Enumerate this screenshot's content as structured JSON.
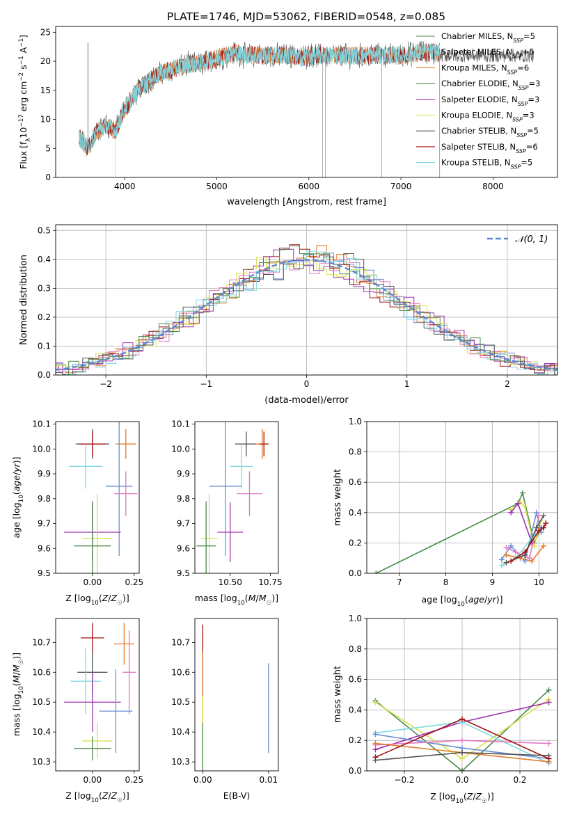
{
  "figure_title": "PLATE=1746, MJD=53062, FIBERID=0548, z=0.085",
  "colors": {
    "c0": "#1f77b4",
    "c1": "#ff7f0e",
    "c2": "#2ca02c",
    "pink": "#e377c2",
    "blue": "#6a8fd6",
    "orange": "#e37b2a",
    "green": "#4a8a4a",
    "purple": "#a030b0",
    "yellow": "#d8e04a",
    "grey": "#555555",
    "red": "#a01010",
    "cyan": "#7fd8e0"
  },
  "chart_data": [
    {
      "id": "spectrum",
      "type": "line",
      "title": "PLATE=1746, MJD=53062, FIBERID=0548, z=0.085",
      "xlabel": "wavelength [Angstrom, rest frame]",
      "ylabel": "Flux [fλ10⁻¹⁷ erg cm⁻² s⁻¹ A⁻¹]",
      "xlim": [
        3250,
        8700
      ],
      "ylim": [
        0,
        26
      ],
      "xticks": [
        4000,
        5000,
        6000,
        7000,
        8000
      ],
      "yticks": [
        0,
        5,
        10,
        15,
        20,
        25
      ],
      "legend": "top-right",
      "envelope": {
        "x": [
          3500,
          3600,
          3700,
          3800,
          3900,
          3950,
          4000,
          4100,
          4200,
          4300,
          4400,
          4500,
          4600,
          4700,
          4800,
          4900,
          5000,
          5100,
          5200,
          5300,
          5400,
          5500,
          5600,
          5700,
          5800,
          5900,
          6000,
          6200,
          6400,
          6600,
          6800,
          7000,
          7200,
          7400
        ],
        "y": [
          7,
          5,
          8,
          9,
          8,
          10,
          12,
          14,
          16,
          17,
          18,
          18.5,
          19,
          19.5,
          19.5,
          20,
          20.5,
          21,
          21.5,
          21,
          21,
          21,
          21,
          21,
          21,
          20.5,
          21,
          21,
          21,
          21,
          21,
          21,
          21.5,
          21.5
        ]
      },
      "series": [
        {
          "name": "Chabrier MILES, NSSP=5",
          "color": "#4a8a4a"
        },
        {
          "name": "Salpeter MILES, NSSP=5",
          "color": "#e37b2a"
        },
        {
          "name": "Kroupa MILES, NSSP=6",
          "color": "#d8802a"
        },
        {
          "name": "Chabrier ELODIE, NSSP=3",
          "color": "#4a8a4a"
        },
        {
          "name": "Salpeter ELODIE, NSSP=3",
          "color": "#a030b0"
        },
        {
          "name": "Kroupa ELODIE, NSSP=3",
          "color": "#d8e04a"
        },
        {
          "name": "Chabrier STELIB, NSSP=5",
          "color": "#555555"
        },
        {
          "name": "Salpeter STELIB, NSSP=6",
          "color": "#a01010"
        },
        {
          "name": "Kroupa STELIB, NSSP=5",
          "color": "#7fd8e0"
        }
      ]
    },
    {
      "id": "residuals",
      "type": "line",
      "xlabel": "(data-model)/error",
      "ylabel": "Normed distribution",
      "xlim": [
        -2.5,
        2.5
      ],
      "ylim": [
        0,
        0.52
      ],
      "xticks": [
        -2,
        -1,
        0,
        1,
        2
      ],
      "yticks": [
        0.0,
        0.1,
        0.2,
        0.3,
        0.4,
        0.5
      ],
      "grid": true,
      "legend": "top-right",
      "legend_label": "𝒩(0, 1)",
      "histogram_colors": [
        "#6a8fd6",
        "#e37b2a",
        "#a01010",
        "#a030b0",
        "#d8e04a",
        "#e377c2",
        "#555555",
        "#7fd8e0",
        "#4a8a4a"
      ]
    },
    {
      "id": "age-vs-Z",
      "type": "scatter",
      "xlabel": "Z [log10(Z/Z☉)]",
      "ylabel": "age  [log10(age/yr)]",
      "xlim": [
        -0.22,
        0.28
      ],
      "ylim": [
        9.5,
        10.11
      ],
      "xticks": [
        0.0,
        0.25
      ],
      "yticks": [
        9.5,
        9.6,
        9.7,
        9.8,
        9.9,
        10.0,
        10.1
      ],
      "points": [
        {
          "x": 0.0,
          "y": 10.02,
          "xerr": 0.1,
          "yerr": 0.06,
          "color": "#555555"
        },
        {
          "x": 0.0,
          "y": 10.02,
          "xerr": 0.08,
          "yerr": 0.05,
          "color": "#a01010"
        },
        {
          "x": 0.2,
          "y": 10.02,
          "xerr": 0.06,
          "yerr": 0.06,
          "color": "#e37b2a"
        },
        {
          "x": -0.04,
          "y": 9.93,
          "xerr": 0.1,
          "yerr": 0.09,
          "color": "#7fd8e0"
        },
        {
          "x": 0.16,
          "y": 9.85,
          "xerr": 0.08,
          "yerr": 0.28,
          "color": "#6a8fd6"
        },
        {
          "x": 0.2,
          "y": 9.82,
          "xerr": 0.07,
          "yerr": 0.09,
          "color": "#e377c2"
        },
        {
          "x": 0.0,
          "y": 9.665,
          "xerr": 0.17,
          "yerr": 0.12,
          "color": "#a030b0"
        },
        {
          "x": 0.03,
          "y": 9.64,
          "xerr": 0.09,
          "yerr": 0.18,
          "color": "#d8e04a"
        },
        {
          "x": 0.0,
          "y": 9.61,
          "xerr": 0.11,
          "yerr": 0.18,
          "color": "#4a8a4a"
        }
      ]
    },
    {
      "id": "age-vs-mass",
      "type": "scatter",
      "xlabel": "mass [log10(M/M☉)]",
      "ylabel": "",
      "xlim": [
        10.28,
        10.8
      ],
      "ylim": [
        9.5,
        10.11
      ],
      "xticks": [
        10.5,
        10.75
      ],
      "yticks": [
        9.5,
        9.6,
        9.7,
        9.8,
        9.9,
        10.0,
        10.1
      ],
      "points": [
        {
          "x": 10.6,
          "y": 10.02,
          "xerr": 0.07,
          "yerr": 0.05,
          "color": "#555555"
        },
        {
          "x": 10.7,
          "y": 10.02,
          "xerr": 0.04,
          "yerr": 0.06,
          "color": "#e37b2a"
        },
        {
          "x": 10.71,
          "y": 10.02,
          "xerr": 0.03,
          "yerr": 0.05,
          "color": "#a01010"
        },
        {
          "x": 10.57,
          "y": 9.93,
          "xerr": 0.07,
          "yerr": 0.09,
          "color": "#7fd8e0"
        },
        {
          "x": 10.47,
          "y": 9.85,
          "xerr": 0.1,
          "yerr": 0.28,
          "color": "#6a8fd6"
        },
        {
          "x": 10.62,
          "y": 9.82,
          "xerr": 0.08,
          "yerr": 0.09,
          "color": "#e377c2"
        },
        {
          "x": 10.5,
          "y": 9.665,
          "xerr": 0.08,
          "yerr": 0.12,
          "color": "#a030b0"
        },
        {
          "x": 10.37,
          "y": 9.64,
          "xerr": 0.05,
          "yerr": 0.18,
          "color": "#d8e04a"
        },
        {
          "x": 10.35,
          "y": 9.61,
          "xerr": 0.06,
          "yerr": 0.18,
          "color": "#4a8a4a"
        }
      ]
    },
    {
      "id": "weight-vs-age",
      "type": "line",
      "xlabel": "age  [log10(age/yr)]",
      "ylabel": "mass weight",
      "xlim": [
        6.3,
        10.4
      ],
      "ylim": [
        0,
        1.0
      ],
      "xticks": [
        7,
        8,
        9,
        10
      ],
      "yticks": [
        0.0,
        0.2,
        0.4,
        0.6,
        0.8,
        1.0
      ],
      "grid": true,
      "series": [
        {
          "color": "#4a8a4a",
          "x": [
            6.5,
            9.55,
            9.65,
            9.9,
            10.05
          ],
          "y": [
            0.0,
            0.46,
            0.53,
            0.2,
            0.3
          ]
        },
        {
          "color": "#d8e04a",
          "x": [
            9.4,
            9.6,
            9.7,
            9.9,
            10.05
          ],
          "y": [
            0.42,
            0.47,
            0.44,
            0.18,
            0.35
          ]
        },
        {
          "color": "#a030b0",
          "x": [
            9.4,
            9.55,
            9.85
          ],
          "y": [
            0.4,
            0.46,
            0.2
          ]
        },
        {
          "color": "#6a8fd6",
          "x": [
            9.2,
            9.4,
            9.7,
            9.95,
            10.05
          ],
          "y": [
            0.09,
            0.18,
            0.08,
            0.4,
            0.27
          ]
        },
        {
          "color": "#e377c2",
          "x": [
            9.3,
            9.5,
            9.8,
            10.0
          ],
          "y": [
            0.17,
            0.14,
            0.1,
            0.38
          ]
        },
        {
          "color": "#e37b2a",
          "x": [
            9.3,
            9.6,
            9.85,
            10.1
          ],
          "y": [
            0.12,
            0.1,
            0.08,
            0.18
          ]
        },
        {
          "color": "#7fd8e0",
          "x": [
            9.2,
            9.5,
            9.9,
            10.1
          ],
          "y": [
            0.05,
            0.1,
            0.25,
            0.3
          ]
        },
        {
          "color": "#555555",
          "x": [
            9.3,
            9.7,
            9.95,
            10.1
          ],
          "y": [
            0.07,
            0.12,
            0.3,
            0.38
          ]
        },
        {
          "color": "#a01010",
          "x": [
            9.4,
            9.7,
            10.0,
            10.1,
            10.15
          ],
          "y": [
            0.08,
            0.14,
            0.28,
            0.3,
            0.33
          ]
        }
      ]
    },
    {
      "id": "mass-vs-Z",
      "type": "scatter",
      "xlabel": "Z [log10(Z/Z☉)]",
      "ylabel": "mass [log10(M/M☉)]",
      "xlim": [
        -0.22,
        0.28
      ],
      "ylim": [
        10.27,
        10.78
      ],
      "xticks": [
        0.0,
        0.25
      ],
      "yticks": [
        10.3,
        10.4,
        10.5,
        10.6,
        10.7
      ],
      "points": [
        {
          "x": 0.0,
          "y": 10.715,
          "xerr": 0.07,
          "yerr": 0.05,
          "color": "#a01010"
        },
        {
          "x": 0.19,
          "y": 10.695,
          "xerr": 0.06,
          "yerr": 0.07,
          "color": "#e37b2a"
        },
        {
          "x": 0.22,
          "y": 10.6,
          "xerr": 0.04,
          "yerr": 0.14,
          "color": "#e377c2"
        },
        {
          "x": 0.0,
          "y": 10.6,
          "xerr": 0.09,
          "yerr": 0.07,
          "color": "#555555"
        },
        {
          "x": -0.04,
          "y": 10.57,
          "xerr": 0.09,
          "yerr": 0.11,
          "color": "#7fd8e0"
        },
        {
          "x": 0.0,
          "y": 10.5,
          "xerr": 0.17,
          "yerr": 0.1,
          "color": "#a030b0"
        },
        {
          "x": 0.14,
          "y": 10.47,
          "xerr": 0.1,
          "yerr": 0.14,
          "color": "#6a8fd6"
        },
        {
          "x": 0.03,
          "y": 10.37,
          "xerr": 0.09,
          "yerr": 0.06,
          "color": "#d8e04a"
        },
        {
          "x": 0.0,
          "y": 10.345,
          "xerr": 0.11,
          "yerr": 0.04,
          "color": "#4a8a4a"
        }
      ]
    },
    {
      "id": "mass-vs-EBV",
      "type": "scatter",
      "xlabel": "E(B-V)",
      "ylabel": "",
      "xlim": [
        -0.0012,
        0.0115
      ],
      "ylim": [
        10.27,
        10.78
      ],
      "xticks": [
        0.0,
        0.01
      ],
      "yticks": [
        10.3,
        10.4,
        10.5,
        10.6,
        10.7
      ],
      "points": [
        {
          "x": 0.0,
          "y": 10.64,
          "yerr": 0.12,
          "color": "#a01010"
        },
        {
          "x": 0.0,
          "y": 10.55,
          "yerr": 0.12,
          "color": "#e37b2a"
        },
        {
          "x": 0.0,
          "y": 10.4,
          "yerr": 0.12,
          "color": "#d8e04a"
        },
        {
          "x": 0.0,
          "y": 10.35,
          "yerr": 0.08,
          "color": "#4a8a4a"
        },
        {
          "x": 0.01,
          "y": 10.48,
          "yerr": 0.15,
          "color": "#6a8fd6"
        }
      ]
    },
    {
      "id": "weight-vs-Z",
      "type": "line",
      "xlabel": "Z [log10(Z/Z☉)]",
      "ylabel": "mass weight",
      "xlim": [
        -0.33,
        0.33
      ],
      "ylim": [
        0,
        1.0
      ],
      "xticks": [
        -0.2,
        0.0,
        0.2
      ],
      "yticks": [
        0.0,
        0.2,
        0.4,
        0.6,
        0.8,
        1.0
      ],
      "grid": true,
      "series": [
        {
          "color": "#4a8a4a",
          "x": [
            -0.3,
            0.0,
            0.3
          ],
          "y": [
            0.46,
            0.0,
            0.53
          ]
        },
        {
          "color": "#d8e04a",
          "x": [
            -0.3,
            0.0,
            0.3
          ],
          "y": [
            0.45,
            0.08,
            0.47
          ]
        },
        {
          "color": "#a030b0",
          "x": [
            -0.3,
            0.0,
            0.3
          ],
          "y": [
            0.14,
            0.32,
            0.45
          ]
        },
        {
          "color": "#7fd8e0",
          "x": [
            -0.3,
            0.0,
            0.3
          ],
          "y": [
            0.25,
            0.32,
            0.05
          ]
        },
        {
          "color": "#6a8fd6",
          "x": [
            -0.3,
            0.0,
            0.3
          ],
          "y": [
            0.24,
            0.15,
            0.08
          ]
        },
        {
          "color": "#e377c2",
          "x": [
            -0.3,
            0.0,
            0.3
          ],
          "y": [
            0.17,
            0.2,
            0.18
          ]
        },
        {
          "color": "#e37b2a",
          "x": [
            -0.3,
            0.0,
            0.3
          ],
          "y": [
            0.18,
            0.12,
            0.06
          ]
        },
        {
          "color": "#555555",
          "x": [
            -0.3,
            0.0,
            0.3
          ],
          "y": [
            0.07,
            0.12,
            0.1
          ]
        },
        {
          "color": "#a01010",
          "x": [
            -0.3,
            0.0,
            0.3
          ],
          "y": [
            0.09,
            0.34,
            0.08
          ]
        }
      ]
    }
  ]
}
